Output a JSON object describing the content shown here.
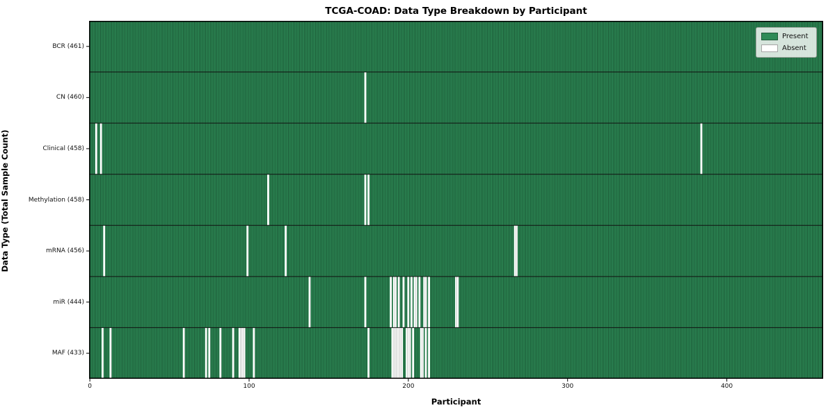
{
  "title": "TCGA-COAD: Data Type Breakdown by Participant",
  "chart_data": {
    "type": "heatmap",
    "title": "TCGA-COAD: Data Type Breakdown by Participant",
    "xlabel": "Participant",
    "ylabel": "Data Type (Total Sample Count)",
    "x_ticks": [
      0,
      100,
      200,
      300,
      400
    ],
    "x_range": [
      0,
      461
    ],
    "n_participants": 461,
    "grid": false,
    "legend_position": "upper right",
    "colors": {
      "present": "#2e8b57",
      "absent": "#ffffff",
      "cell_edge": "rgba(2,22,10,0.55)",
      "row_separator": "#111111",
      "frame": "#000000"
    },
    "legend": {
      "items": [
        {
          "label": "Present",
          "color": "#2e8b57"
        },
        {
          "label": "Absent",
          "color": "#ffffff"
        }
      ]
    },
    "rows": [
      {
        "name": "BCR",
        "label": "BCR (461)",
        "present_count": 461,
        "absent_indices": []
      },
      {
        "name": "CN",
        "label": "CN (460)",
        "present_count": 460,
        "absent_indices": [
          173
        ]
      },
      {
        "name": "Clinical",
        "label": "Clinical (458)",
        "present_count": 458,
        "absent_indices": [
          4,
          7,
          384
        ]
      },
      {
        "name": "Methylation",
        "label": "Methylation (458)",
        "present_count": 458,
        "absent_indices": [
          112,
          173,
          175
        ]
      },
      {
        "name": "mRNA",
        "label": "mRNA (456)",
        "present_count": 456,
        "absent_indices": [
          9,
          99,
          123,
          267,
          268
        ]
      },
      {
        "name": "miR",
        "label": "miR (444)",
        "present_count": 444,
        "absent_indices": [
          138,
          173,
          189,
          191,
          192,
          194,
          197,
          200,
          202,
          204,
          205,
          207,
          210,
          211,
          213,
          230,
          231
        ]
      },
      {
        "name": "MAF",
        "label": "MAF (433)",
        "present_count": 433,
        "absent_indices": [
          8,
          13,
          59,
          73,
          75,
          82,
          90,
          94,
          95,
          96,
          97,
          103,
          175,
          190,
          191,
          192,
          193,
          194,
          195,
          196,
          199,
          200,
          201,
          203,
          208,
          209,
          211,
          213
        ]
      }
    ]
  }
}
